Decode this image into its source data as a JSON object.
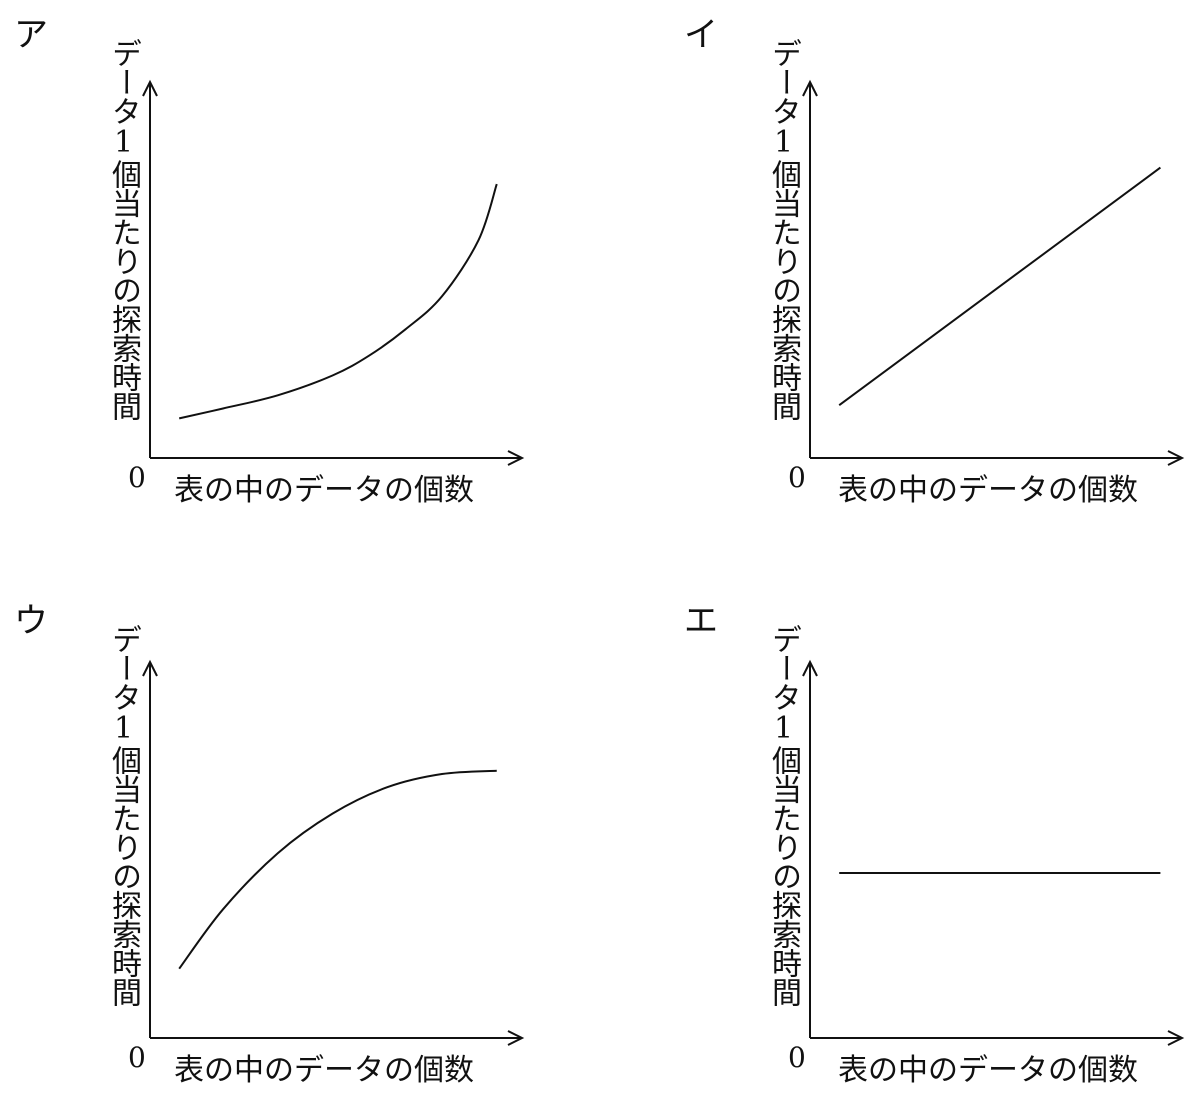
{
  "chart_data": [
    {
      "type": "line",
      "panel_label": "ア",
      "ylabel": "データ1個当たりの探索時間",
      "xlabel": "表の中のデータの個数",
      "origin_label": "0",
      "shape": "increasing, convex (accelerating growth)",
      "x": [
        0.08,
        0.2,
        0.35,
        0.5,
        0.6,
        0.7,
        0.8,
        0.9,
        0.95
      ],
      "y": [
        0.12,
        0.15,
        0.19,
        0.25,
        0.31,
        0.39,
        0.49,
        0.66,
        0.83
      ],
      "xlim": [
        0,
        1
      ],
      "ylim": [
        0,
        1
      ],
      "grid": false,
      "line_color": "#111111"
    },
    {
      "type": "line",
      "panel_label": "イ",
      "ylabel": "データ1個当たりの探索時間",
      "xlabel": "表の中のデータの個数",
      "origin_label": "0",
      "shape": "increasing, linear",
      "x": [
        0.08,
        0.96
      ],
      "y": [
        0.16,
        0.88
      ],
      "xlim": [
        0,
        1
      ],
      "ylim": [
        0,
        1
      ],
      "grid": false,
      "line_color": "#111111"
    },
    {
      "type": "line",
      "panel_label": "ウ",
      "ylabel": "データ1個当たりの探索時間",
      "xlabel": "表の中のデータの個数",
      "origin_label": "0",
      "shape": "increasing, concave (leveling off)",
      "x": [
        0.08,
        0.2,
        0.35,
        0.5,
        0.65,
        0.8,
        0.95
      ],
      "y": [
        0.21,
        0.39,
        0.56,
        0.68,
        0.76,
        0.8,
        0.81
      ],
      "xlim": [
        0,
        1
      ],
      "ylim": [
        0,
        1
      ],
      "grid": false,
      "line_color": "#111111"
    },
    {
      "type": "line",
      "panel_label": "エ",
      "ylabel": "データ1個当たりの探索時間",
      "xlabel": "表の中のデータの個数",
      "origin_label": "0",
      "shape": "constant",
      "x": [
        0.08,
        0.96
      ],
      "y": [
        0.5,
        0.5
      ],
      "xlim": [
        0,
        1
      ],
      "ylim": [
        0,
        1
      ],
      "grid": false,
      "line_color": "#111111"
    }
  ]
}
